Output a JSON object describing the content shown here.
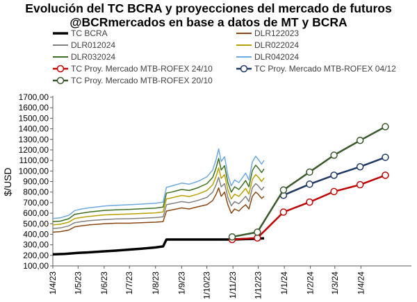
{
  "chart_data": {
    "type": "line",
    "title": "Evolución del TC BCRA y proyecciones del mercado de futuros",
    "subtitle": "@BCRmercados en base a datos de MT y BCRA",
    "ylabel": "$/USD",
    "xlabel": "",
    "ylim": [
      100,
      1700
    ],
    "yticks": [
      "100,00",
      "200,00",
      "300,00",
      "400,00",
      "500,00",
      "600,00",
      "700,00",
      "800,00",
      "900,00",
      "1000,00",
      "1100,00",
      "1200,00",
      "1300,00",
      "1400,00",
      "1500,00",
      "1600,00",
      "1700,00"
    ],
    "xlim": [
      "2023-04-01",
      "2024-05-31"
    ],
    "xticks": [
      {
        "date": "2023-04-01",
        "label": "1/4/23"
      },
      {
        "date": "2023-05-01",
        "label": "1/5/23"
      },
      {
        "date": "2023-06-01",
        "label": "1/6/23"
      },
      {
        "date": "2023-07-01",
        "label": "1/7/23"
      },
      {
        "date": "2023-08-01",
        "label": "1/8/23"
      },
      {
        "date": "2023-09-01",
        "label": "1/9/23"
      },
      {
        "date": "2023-10-01",
        "label": "1/10/23"
      },
      {
        "date": "2023-11-01",
        "label": "1/11/23"
      },
      {
        "date": "2023-12-01",
        "label": "1/12/23"
      },
      {
        "date": "2024-01-01",
        "label": "1/1/24"
      },
      {
        "date": "2024-02-01",
        "label": "1/2/24"
      },
      {
        "date": "2024-03-01",
        "label": "1/3/24"
      },
      {
        "date": "2024-04-01",
        "label": "1/4/24"
      }
    ],
    "grid": false,
    "legend_position": "top",
    "series": [
      {
        "name": "TC BCRA",
        "color": "#000000",
        "width": 3.5,
        "markers": false,
        "points": [
          [
            "2023-04-01",
            209
          ],
          [
            "2023-04-15",
            214
          ],
          [
            "2023-05-01",
            223
          ],
          [
            "2023-05-15",
            229
          ],
          [
            "2023-06-01",
            238
          ],
          [
            "2023-06-15",
            245
          ],
          [
            "2023-07-01",
            255
          ],
          [
            "2023-07-15",
            263
          ],
          [
            "2023-08-01",
            275
          ],
          [
            "2023-08-10",
            285
          ],
          [
            "2023-08-14",
            350
          ],
          [
            "2023-09-01",
            350
          ],
          [
            "2023-10-01",
            350
          ],
          [
            "2023-11-01",
            350
          ],
          [
            "2023-11-15",
            354
          ],
          [
            "2023-12-01",
            358
          ],
          [
            "2023-12-08",
            362
          ]
        ]
      },
      {
        "name": "DLR122023",
        "color": "#8B4513",
        "width": 1.5,
        "markers": false,
        "points": [
          [
            "2023-04-01",
            420
          ],
          [
            "2023-04-10",
            425
          ],
          [
            "2023-04-20",
            440
          ],
          [
            "2023-04-27",
            470
          ],
          [
            "2023-05-05",
            480
          ],
          [
            "2023-05-15",
            490
          ],
          [
            "2023-05-25",
            495
          ],
          [
            "2023-06-01",
            500
          ],
          [
            "2023-06-15",
            505
          ],
          [
            "2023-07-01",
            505
          ],
          [
            "2023-07-15",
            510
          ],
          [
            "2023-08-01",
            515
          ],
          [
            "2023-08-10",
            520
          ],
          [
            "2023-08-14",
            620
          ],
          [
            "2023-08-20",
            630
          ],
          [
            "2023-09-01",
            650
          ],
          [
            "2023-09-10",
            640
          ],
          [
            "2023-09-20",
            660
          ],
          [
            "2023-10-01",
            680
          ],
          [
            "2023-10-08",
            720
          ],
          [
            "2023-10-12",
            780
          ],
          [
            "2023-10-15",
            840
          ],
          [
            "2023-10-18",
            760
          ],
          [
            "2023-10-22",
            800
          ],
          [
            "2023-10-26",
            680
          ],
          [
            "2023-10-30",
            600
          ],
          [
            "2023-11-03",
            640
          ],
          [
            "2023-11-08",
            620
          ],
          [
            "2023-11-13",
            660
          ],
          [
            "2023-11-16",
            680
          ],
          [
            "2023-11-20",
            640
          ],
          [
            "2023-11-24",
            760
          ],
          [
            "2023-11-28",
            800
          ],
          [
            "2023-12-01",
            780
          ],
          [
            "2023-12-05",
            740
          ],
          [
            "2023-12-08",
            760
          ]
        ]
      },
      {
        "name": "DLR012024",
        "color": "#7f7f7f",
        "width": 1.5,
        "markers": false,
        "points": [
          [
            "2023-04-01",
            455
          ],
          [
            "2023-04-10",
            460
          ],
          [
            "2023-04-20",
            480
          ],
          [
            "2023-04-27",
            510
          ],
          [
            "2023-05-05",
            520
          ],
          [
            "2023-05-15",
            530
          ],
          [
            "2023-05-25",
            535
          ],
          [
            "2023-06-01",
            540
          ],
          [
            "2023-06-15",
            545
          ],
          [
            "2023-07-01",
            548
          ],
          [
            "2023-07-15",
            552
          ],
          [
            "2023-08-01",
            558
          ],
          [
            "2023-08-10",
            565
          ],
          [
            "2023-08-14",
            680
          ],
          [
            "2023-08-20",
            690
          ],
          [
            "2023-09-01",
            710
          ],
          [
            "2023-09-10",
            700
          ],
          [
            "2023-09-20",
            720
          ],
          [
            "2023-10-01",
            750
          ],
          [
            "2023-10-08",
            800
          ],
          [
            "2023-10-12",
            870
          ],
          [
            "2023-10-15",
            940
          ],
          [
            "2023-10-18",
            850
          ],
          [
            "2023-10-22",
            880
          ],
          [
            "2023-10-26",
            750
          ],
          [
            "2023-10-30",
            670
          ],
          [
            "2023-11-03",
            710
          ],
          [
            "2023-11-08",
            690
          ],
          [
            "2023-11-13",
            730
          ],
          [
            "2023-11-16",
            760
          ],
          [
            "2023-11-20",
            710
          ],
          [
            "2023-11-24",
            840
          ],
          [
            "2023-11-28",
            880
          ],
          [
            "2023-12-01",
            860
          ],
          [
            "2023-12-05",
            820
          ],
          [
            "2023-12-08",
            850
          ]
        ]
      },
      {
        "name": "DLR022024",
        "color": "#b8a000",
        "width": 1.5,
        "markers": false,
        "points": [
          [
            "2023-04-01",
            490
          ],
          [
            "2023-04-10",
            495
          ],
          [
            "2023-04-20",
            515
          ],
          [
            "2023-04-27",
            550
          ],
          [
            "2023-05-05",
            560
          ],
          [
            "2023-05-15",
            570
          ],
          [
            "2023-05-25",
            578
          ],
          [
            "2023-06-01",
            583
          ],
          [
            "2023-06-15",
            588
          ],
          [
            "2023-07-01",
            592
          ],
          [
            "2023-07-15",
            597
          ],
          [
            "2023-08-01",
            603
          ],
          [
            "2023-08-10",
            612
          ],
          [
            "2023-08-14",
            735
          ],
          [
            "2023-08-20",
            745
          ],
          [
            "2023-09-01",
            768
          ],
          [
            "2023-09-10",
            758
          ],
          [
            "2023-09-20",
            780
          ],
          [
            "2023-10-01",
            815
          ],
          [
            "2023-10-08",
            870
          ],
          [
            "2023-10-12",
            950
          ],
          [
            "2023-10-15",
            1030
          ],
          [
            "2023-10-18",
            930
          ],
          [
            "2023-10-22",
            965
          ],
          [
            "2023-10-26",
            820
          ],
          [
            "2023-10-30",
            735
          ],
          [
            "2023-11-03",
            780
          ],
          [
            "2023-11-08",
            760
          ],
          [
            "2023-11-13",
            805
          ],
          [
            "2023-11-16",
            835
          ],
          [
            "2023-11-20",
            780
          ],
          [
            "2023-11-24",
            920
          ],
          [
            "2023-11-28",
            965
          ],
          [
            "2023-12-01",
            945
          ],
          [
            "2023-12-05",
            900
          ],
          [
            "2023-12-08",
            935
          ]
        ]
      },
      {
        "name": "DLR032024",
        "color": "#3c6e1f",
        "width": 1.5,
        "markers": false,
        "points": [
          [
            "2023-04-01",
            520
          ],
          [
            "2023-04-10",
            525
          ],
          [
            "2023-04-20",
            548
          ],
          [
            "2023-04-27",
            590
          ],
          [
            "2023-05-05",
            600
          ],
          [
            "2023-05-15",
            612
          ],
          [
            "2023-05-25",
            620
          ],
          [
            "2023-06-01",
            626
          ],
          [
            "2023-06-15",
            632
          ],
          [
            "2023-07-01",
            636
          ],
          [
            "2023-07-15",
            642
          ],
          [
            "2023-08-01",
            648
          ],
          [
            "2023-08-10",
            658
          ],
          [
            "2023-08-14",
            790
          ],
          [
            "2023-08-20",
            800
          ],
          [
            "2023-09-01",
            825
          ],
          [
            "2023-09-10",
            815
          ],
          [
            "2023-09-20",
            840
          ],
          [
            "2023-10-01",
            880
          ],
          [
            "2023-10-08",
            940
          ],
          [
            "2023-10-12",
            1030
          ],
          [
            "2023-10-15",
            1120
          ],
          [
            "2023-10-18",
            1010
          ],
          [
            "2023-10-22",
            1050
          ],
          [
            "2023-10-26",
            890
          ],
          [
            "2023-10-30",
            800
          ],
          [
            "2023-11-03",
            850
          ],
          [
            "2023-11-08",
            825
          ],
          [
            "2023-11-13",
            875
          ],
          [
            "2023-11-16",
            910
          ],
          [
            "2023-11-20",
            850
          ],
          [
            "2023-11-24",
            1005
          ],
          [
            "2023-11-28",
            1055
          ],
          [
            "2023-12-01",
            1030
          ],
          [
            "2023-12-05",
            985
          ],
          [
            "2023-12-08",
            1020
          ]
        ]
      },
      {
        "name": "DLR042024",
        "color": "#6fa8dc",
        "width": 1.5,
        "markers": false,
        "points": [
          [
            "2023-04-01",
            550
          ],
          [
            "2023-04-10",
            556
          ],
          [
            "2023-04-20",
            580
          ],
          [
            "2023-04-27",
            625
          ],
          [
            "2023-05-05",
            640
          ],
          [
            "2023-05-15",
            652
          ],
          [
            "2023-05-25",
            660
          ],
          [
            "2023-06-01",
            668
          ],
          [
            "2023-06-15",
            675
          ],
          [
            "2023-07-01",
            680
          ],
          [
            "2023-07-15",
            686
          ],
          [
            "2023-08-01",
            694
          ],
          [
            "2023-08-10",
            705
          ],
          [
            "2023-08-14",
            845
          ],
          [
            "2023-08-20",
            858
          ],
          [
            "2023-09-01",
            885
          ],
          [
            "2023-09-10",
            875
          ],
          [
            "2023-09-20",
            900
          ],
          [
            "2023-10-01",
            945
          ],
          [
            "2023-10-08",
            1010
          ],
          [
            "2023-10-12",
            1110
          ],
          [
            "2023-10-15",
            1210
          ],
          [
            "2023-10-18",
            1090
          ],
          [
            "2023-10-22",
            1135
          ],
          [
            "2023-10-26",
            960
          ],
          [
            "2023-10-30",
            860
          ],
          [
            "2023-11-03",
            915
          ],
          [
            "2023-11-08",
            890
          ],
          [
            "2023-11-13",
            945
          ],
          [
            "2023-11-16",
            980
          ],
          [
            "2023-11-20",
            915
          ],
          [
            "2023-11-24",
            1085
          ],
          [
            "2023-11-28",
            1140
          ],
          [
            "2023-12-01",
            1110
          ],
          [
            "2023-12-05",
            1065
          ],
          [
            "2023-12-08",
            1100
          ]
        ]
      },
      {
        "name": "TC Proy. Mercado MTB-ROFEX 24/10",
        "color": "#c00000",
        "width": 2.5,
        "markers": true,
        "points": [
          [
            "2023-10-31",
            350
          ],
          [
            "2023-11-30",
            365
          ],
          [
            "2023-12-31",
            610
          ],
          [
            "2024-01-31",
            705
          ],
          [
            "2024-02-29",
            805
          ],
          [
            "2024-03-31",
            870
          ],
          [
            "2024-04-30",
            960
          ]
        ]
      },
      {
        "name": "TC Proy. Mercado MTB-ROFEX 04/12",
        "color": "#1f3864",
        "width": 2.5,
        "markers": true,
        "points": [
          [
            "2023-12-31",
            770
          ],
          [
            "2024-01-31",
            875
          ],
          [
            "2024-02-29",
            960
          ],
          [
            "2024-03-31",
            1040
          ],
          [
            "2024-04-30",
            1130
          ]
        ]
      },
      {
        "name": "TC Proy. Mercado MTB-ROFEX 20/10",
        "color": "#38572a",
        "width": 2.5,
        "markers": true,
        "points": [
          [
            "2023-10-31",
            375
          ],
          [
            "2023-11-30",
            420
          ],
          [
            "2023-12-31",
            820
          ],
          [
            "2024-01-31",
            990
          ],
          [
            "2024-02-29",
            1150
          ],
          [
            "2024-03-31",
            1290
          ],
          [
            "2024-04-30",
            1420
          ]
        ]
      }
    ]
  }
}
